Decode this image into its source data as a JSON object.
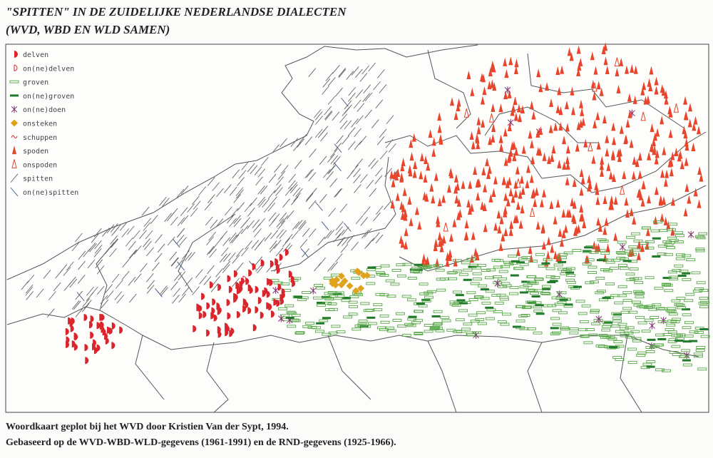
{
  "header": {
    "title": [
      "\"SPITTEN\" IN DE ZUIDELIJKE NEDERLANDSE DIALECTEN",
      "(WVD, WBD EN WLD SAMEN)"
    ]
  },
  "legend": {
    "items": [
      "delven",
      "on(ne)delven",
      "groven",
      "on(ne)groven",
      "on(ne)doen",
      "onsteken",
      "schuppen",
      "spoden",
      "onspoden",
      "spitten",
      "on(ne)spitten"
    ]
  },
  "caption": {
    "lines": [
      "Woordkaart geplot bij het WVD door Kristien Van der Sypt, 1994.",
      "Gebaseerd op de WVD-WBD-WLD-gegevens (1961-1991) en de RND-gegevens (1925-1966)."
    ]
  }
}
